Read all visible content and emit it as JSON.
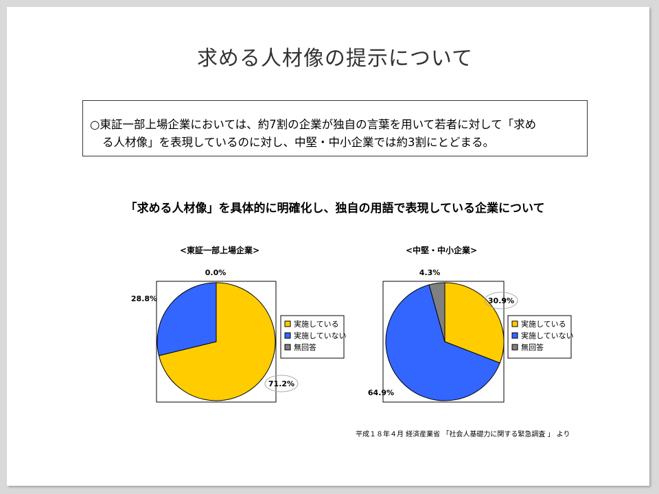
{
  "title": "求める人材像の提示について",
  "summary": {
    "line1": "○東証一部上場企業においては、約7割の企業が独自の言葉を用いて若者に対して「求め",
    "line2": "る人材像」を表現しているのに対し、中堅・中小企業では約3割にとどまる。"
  },
  "section_title": "「求める人材像」を具体的に明確化し、独自の用語で表現している企業について",
  "source": "平成１８年４月 経済産業省 「社会人基礎力に関する緊急調査 」 より",
  "colors": {
    "implemented": "#FFCC00",
    "not_implemented": "#3366FF",
    "no_answer": "#808080"
  },
  "chart_data": [
    {
      "type": "pie",
      "title": "<東証一部上場企業>",
      "labels": [
        "実施している",
        "実施していない",
        "無回答"
      ],
      "values": [
        71.2,
        28.8,
        0.0
      ],
      "value_labels": [
        "71.2%",
        "28.8%",
        "0.0%"
      ],
      "legend": "right"
    },
    {
      "type": "pie",
      "title": "<中堅・中小企業>",
      "labels": [
        "実施している",
        "実施していない",
        "無回答"
      ],
      "values": [
        30.9,
        64.9,
        4.3
      ],
      "value_labels": [
        "30.9%",
        "64.9%",
        "4.3%"
      ],
      "legend": "right"
    }
  ]
}
